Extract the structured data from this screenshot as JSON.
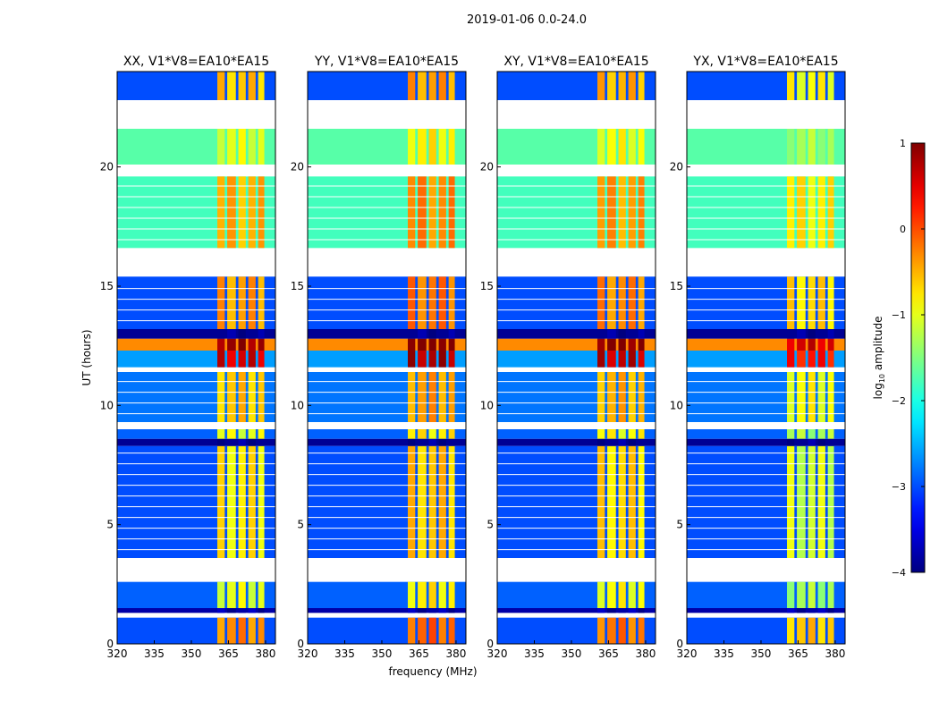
{
  "chart_data": {
    "type": "heatmap",
    "title": "2019-01-06 0.0-24.0",
    "xlabel": "frequency (MHz)",
    "ylabel": "UT (hours)",
    "xlim": [
      320,
      384
    ],
    "ylim": [
      0,
      24
    ],
    "xticks": [
      "320",
      "335",
      "350",
      "365",
      "380"
    ],
    "yticks": [
      "0",
      "5",
      "10",
      "15",
      "20"
    ],
    "colorbar": {
      "label_prefix": "log",
      "label_sub": "10",
      "label_suffix": " amplitude",
      "range": [
        -4,
        1
      ],
      "ticks": [
        "−4",
        "−3",
        "−2",
        "−1",
        "0",
        "1"
      ],
      "colormap": "jet"
    },
    "rfi_channels_mhz": [
      [
        360.5,
        363.5
      ],
      [
        364.5,
        368
      ],
      [
        369,
        372
      ],
      [
        373,
        376
      ],
      [
        377,
        379.5
      ]
    ],
    "time_segments": [
      {
        "start": 0.0,
        "end": 1.1,
        "base": -3.0,
        "rfi": -0.3
      },
      {
        "start": 1.1,
        "end": 1.3,
        "base": null,
        "rfi": null
      },
      {
        "start": 1.3,
        "end": 1.5,
        "base": -3.8,
        "rfi": -3.8
      },
      {
        "start": 1.5,
        "end": 2.6,
        "base": -2.9,
        "rfi": -1.0
      },
      {
        "start": 2.6,
        "end": 3.6,
        "base": null,
        "rfi": null
      },
      {
        "start": 3.6,
        "end": 8.3,
        "base": -3.0,
        "rfi": -0.8
      },
      {
        "start": 8.3,
        "end": 8.6,
        "base": -3.9,
        "rfi": -3.9
      },
      {
        "start": 8.6,
        "end": 9.0,
        "base": -2.9,
        "rfi": -1.0
      },
      {
        "start": 9.0,
        "end": 9.3,
        "base": null,
        "rfi": null
      },
      {
        "start": 9.3,
        "end": 11.4,
        "base": -2.8,
        "rfi": -0.6
      },
      {
        "start": 11.4,
        "end": 11.6,
        "base": null,
        "rfi": null
      },
      {
        "start": 11.6,
        "end": 12.3,
        "base": -2.6,
        "rfi": 0.6
      },
      {
        "start": 12.3,
        "end": 12.8,
        "base": -0.3,
        "rfi": 0.9
      },
      {
        "start": 12.8,
        "end": 13.2,
        "base": -3.9,
        "rfi": -3.9
      },
      {
        "start": 13.2,
        "end": 15.4,
        "base": -3.0,
        "rfi": -0.4
      },
      {
        "start": 15.4,
        "end": 16.6,
        "base": null,
        "rfi": null
      },
      {
        "start": 16.6,
        "end": 19.6,
        "base": -1.8,
        "rfi": -0.5
      },
      {
        "start": 19.6,
        "end": 20.1,
        "base": null,
        "rfi": null
      },
      {
        "start": 20.1,
        "end": 21.6,
        "base": -1.7,
        "rfi": -1.0
      },
      {
        "start": 21.6,
        "end": 22.8,
        "base": null,
        "rfi": null
      },
      {
        "start": 22.8,
        "end": 24.0,
        "base": -3.0,
        "rfi": -0.6
      }
    ],
    "panels": [
      {
        "title": "XX, V1*V8=EA10*EA15",
        "rfi_offset": 0.0
      },
      {
        "title": "YY, V1*V8=EA10*EA15",
        "rfi_offset": 0.2
      },
      {
        "title": "XY, V1*V8=EA10*EA15",
        "rfi_offset": 0.1
      },
      {
        "title": "YX, V1*V8=EA10*EA15",
        "rfi_offset": -0.3
      }
    ]
  }
}
